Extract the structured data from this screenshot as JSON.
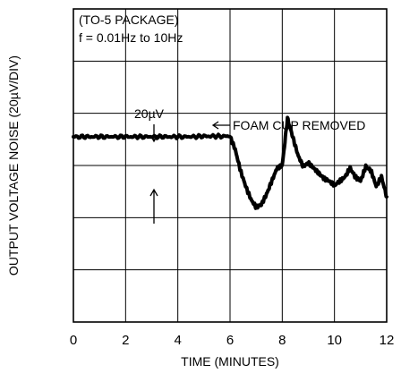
{
  "chart_data": {
    "type": "line",
    "title": "",
    "xlabel": "TIME (MINUTES)",
    "ylabel": "OUTPUT VOLTAGE NOISE (20µV/DIV)",
    "xlim": [
      0,
      12
    ],
    "ylim": [
      0,
      6
    ],
    "x_ticks": [
      "0",
      "2",
      "4",
      "6",
      "8",
      "10",
      "12"
    ],
    "grid": true,
    "annotations": {
      "package": "(TO-5 PACKAGE)",
      "bandwidth": "f = 0.01Hz to 10Hz",
      "scale": "20µV",
      "event": "FOAM CUP REMOVED"
    },
    "series": [
      {
        "x": [
          0,
          0.5,
          1,
          1.5,
          2,
          2.5,
          3,
          3.5,
          4,
          4.5,
          5,
          5.5,
          6,
          6.2,
          6.4,
          6.6,
          6.8,
          7.0,
          7.2,
          7.4,
          7.6,
          7.8,
          8.0,
          8.2,
          8.4,
          8.6,
          8.8,
          9.0,
          9.2,
          9.4,
          9.6,
          9.8,
          10.0,
          10.2,
          10.4,
          10.6,
          10.8,
          11.0,
          11.2,
          11.4,
          11.6,
          11.8,
          12
        ],
        "y": [
          3.55,
          3.55,
          3.55,
          3.55,
          3.55,
          3.55,
          3.55,
          3.55,
          3.55,
          3.55,
          3.56,
          3.56,
          3.56,
          3.3,
          2.9,
          2.6,
          2.35,
          2.2,
          2.25,
          2.45,
          2.7,
          2.95,
          3.0,
          3.9,
          3.55,
          3.2,
          2.98,
          3.05,
          2.95,
          2.85,
          2.75,
          2.7,
          2.62,
          2.7,
          2.78,
          2.95,
          2.78,
          2.7,
          2.98,
          2.9,
          2.6,
          2.78,
          2.4
        ]
      }
    ]
  }
}
